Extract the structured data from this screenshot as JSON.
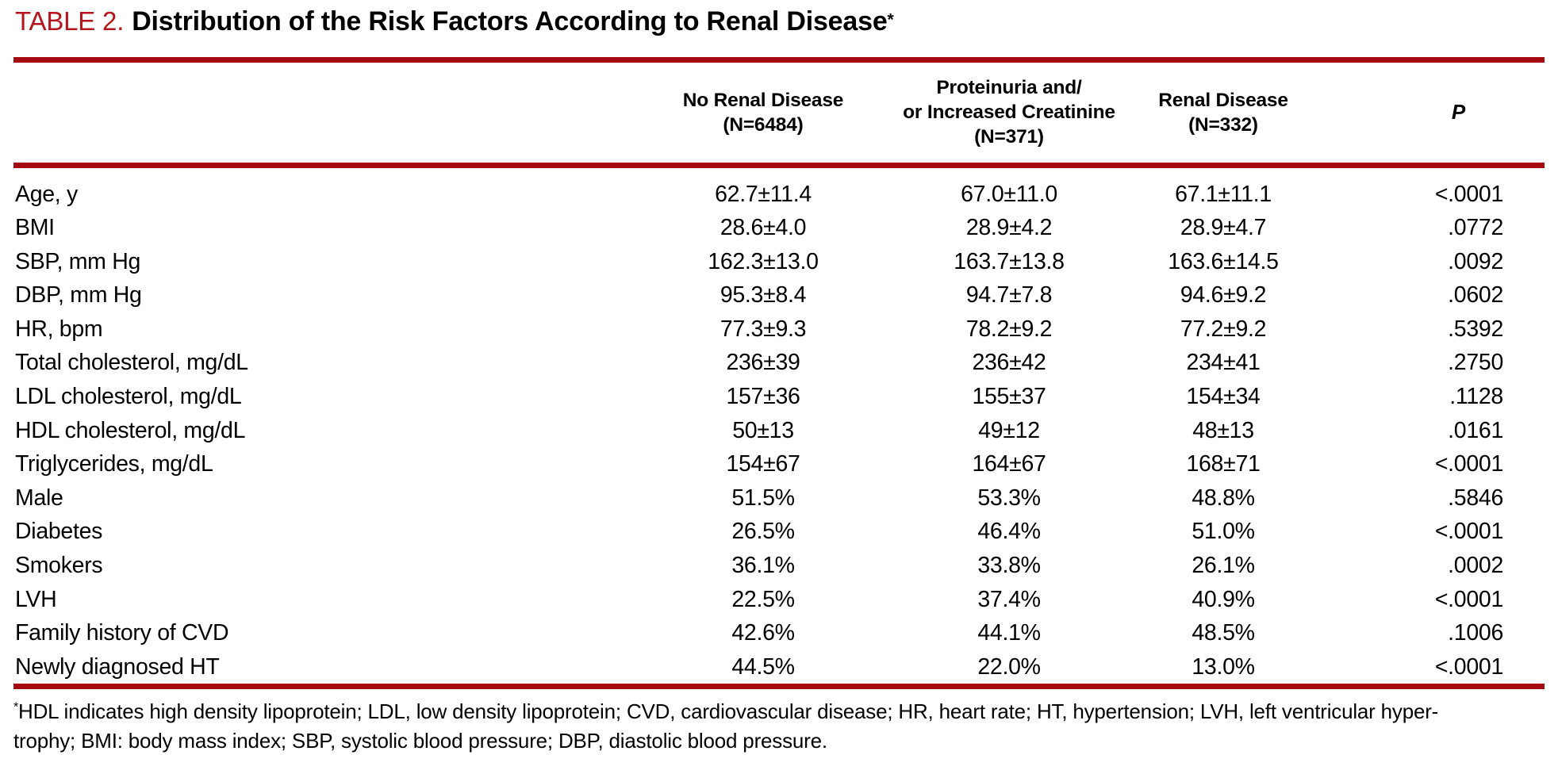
{
  "title": {
    "label": "TABLE 2.",
    "text": "Distribution of the Risk Factors According to Renal Disease",
    "footnote_marker": "*"
  },
  "colors": {
    "rule_red": "#a50b10",
    "title_red": "#b5161d",
    "text": "#000000"
  },
  "header": {
    "columns": [
      {
        "lines": [
          "No Renal Disease",
          "(N=6484)"
        ]
      },
      {
        "lines": [
          "Proteinuria and/",
          "or Increased Creatinine",
          "(N=371)"
        ]
      },
      {
        "lines": [
          "Renal Disease",
          "(N=332)"
        ]
      },
      {
        "lines": [
          "P"
        ]
      }
    ]
  },
  "table": {
    "rows": [
      {
        "label": "Age, y",
        "values": [
          "62.7±11.4",
          "67.0±11.0",
          "67.1±11.1",
          "<.0001"
        ]
      },
      {
        "label": "BMI",
        "values": [
          "28.6±4.0",
          "28.9±4.2",
          "28.9±4.7",
          ".0772"
        ]
      },
      {
        "label": "SBP, mm Hg",
        "values": [
          "162.3±13.0",
          "163.7±13.8",
          "163.6±14.5",
          ".0092"
        ]
      },
      {
        "label": "DBP, mm Hg",
        "values": [
          "95.3±8.4",
          "94.7±7.8",
          "94.6±9.2",
          ".0602"
        ]
      },
      {
        "label": "HR, bpm",
        "values": [
          "77.3±9.3",
          "78.2±9.2",
          "77.2±9.2",
          ".5392"
        ]
      },
      {
        "label": "Total cholesterol, mg/dL",
        "values": [
          "236±39",
          "236±42",
          "234±41",
          ".2750"
        ]
      },
      {
        "label": "LDL cholesterol, mg/dL",
        "values": [
          "157±36",
          "155±37",
          "154±34",
          ".1128"
        ]
      },
      {
        "label": "HDL cholesterol, mg/dL",
        "values": [
          "50±13",
          "49±12",
          "48±13",
          ".0161"
        ]
      },
      {
        "label": "Triglycerides, mg/dL",
        "values": [
          "154±67",
          "164±67",
          "168±71",
          "<.0001"
        ]
      },
      {
        "label": "Male",
        "values": [
          "51.5%",
          "53.3%",
          "48.8%",
          ".5846"
        ]
      },
      {
        "label": "Diabetes",
        "values": [
          "26.5%",
          "46.4%",
          "51.0%",
          "<.0001"
        ]
      },
      {
        "label": "Smokers",
        "values": [
          "36.1%",
          "33.8%",
          "26.1%",
          ".0002"
        ]
      },
      {
        "label": "LVH",
        "values": [
          "22.5%",
          "37.4%",
          "40.9%",
          "<.0001"
        ]
      },
      {
        "label": "Family history of CVD",
        "values": [
          "42.6%",
          "44.1%",
          "48.5%",
          ".1006"
        ]
      },
      {
        "label": "Newly diagnosed HT",
        "values": [
          "44.5%",
          "22.0%",
          "13.0%",
          "<.0001"
        ]
      }
    ]
  },
  "footnote": {
    "marker": "*",
    "line1": "HDL indicates high density lipoprotein; LDL, low density lipoprotein; CVD, cardiovascular disease; HR, heart rate; HT, hypertension; LVH, left ventricular hyper-",
    "line2": "trophy; BMI: body mass index; SBP, systolic blood pressure; DBP, diastolic blood pressure."
  }
}
